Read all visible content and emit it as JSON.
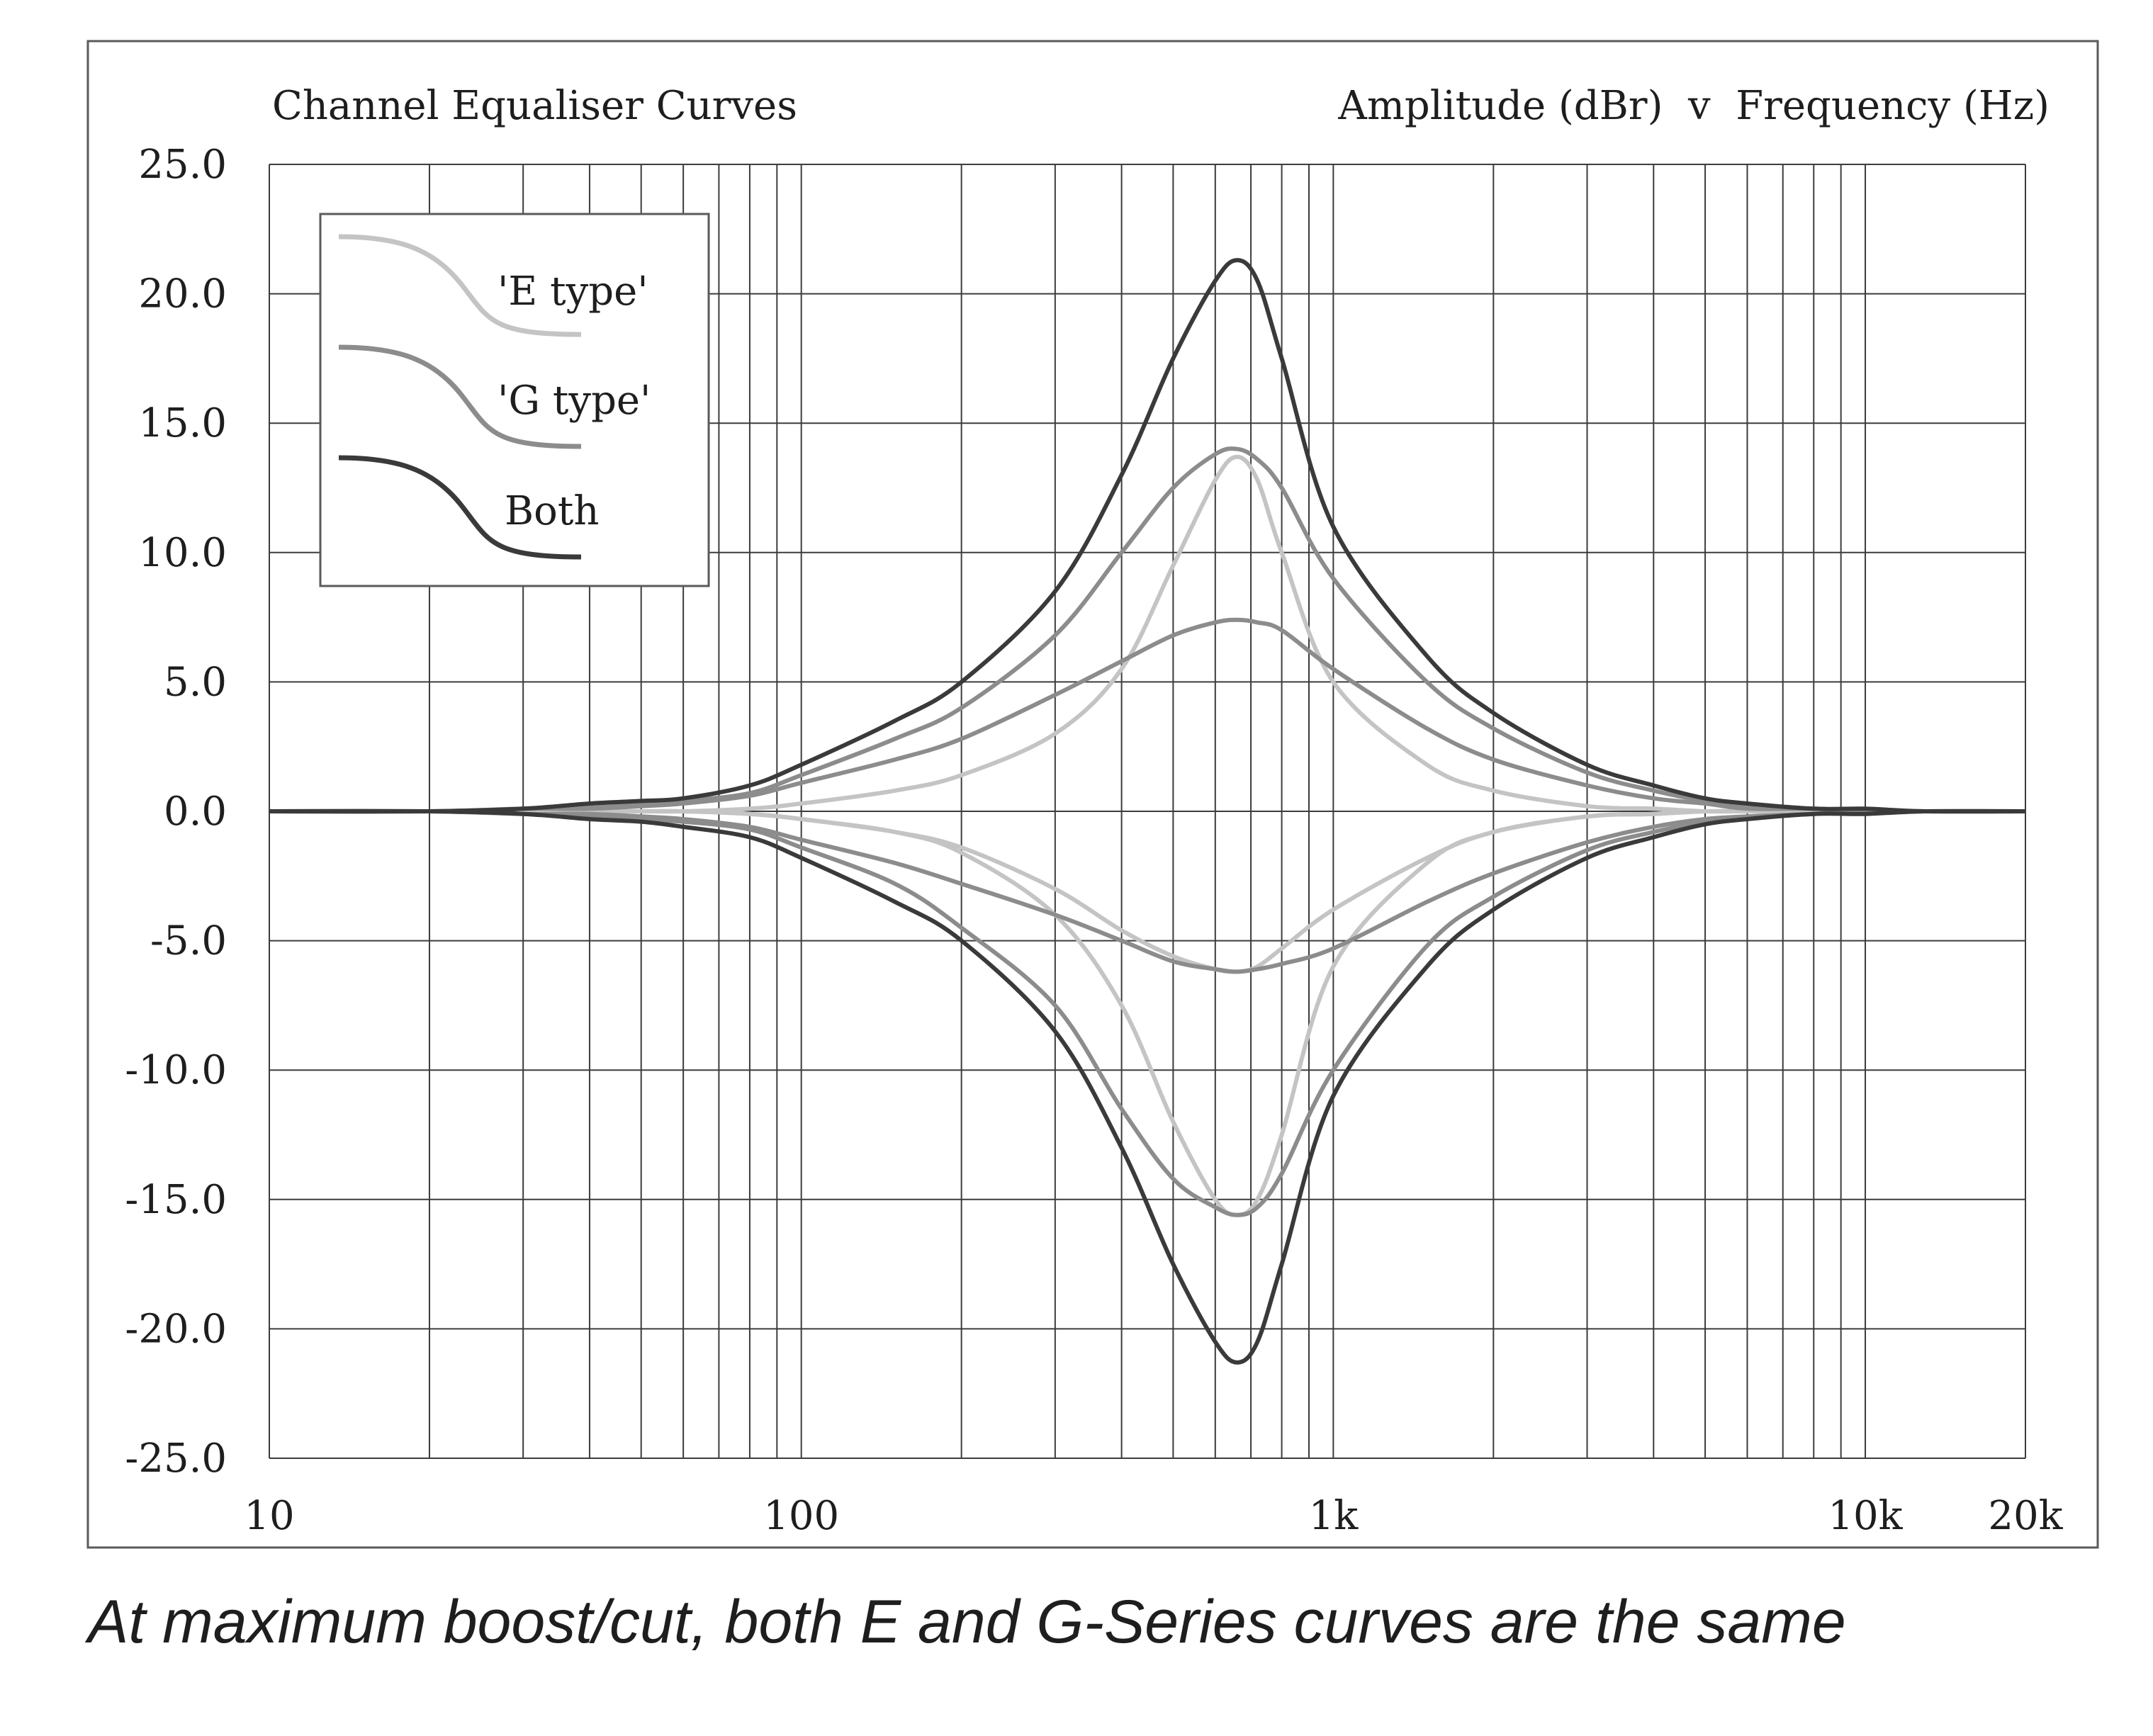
{
  "caption": "At maximum boost/cut, both E and G-Series curves are the same",
  "chart_data": {
    "type": "line",
    "title": "Channel Equaliser Curves",
    "subtitle": "Amplitude (dBr)  v  Frequency (Hz)",
    "x_scale": "log",
    "xlim": [
      10,
      20000
    ],
    "ylim": [
      -25,
      25
    ],
    "grid": true,
    "x_ticks": [
      {
        "value": 10,
        "label": "10"
      },
      {
        "value": 100,
        "label": "100"
      },
      {
        "value": 1000,
        "label": "1k"
      },
      {
        "value": 10000,
        "label": "10k"
      },
      {
        "value": 20000,
        "label": "20k"
      }
    ],
    "y_ticks": [
      {
        "value": 25,
        "label": "25.0"
      },
      {
        "value": 20,
        "label": "20.0"
      },
      {
        "value": 15,
        "label": "15.0"
      },
      {
        "value": 10,
        "label": "10.0"
      },
      {
        "value": 5,
        "label": "5.0"
      },
      {
        "value": 0,
        "label": "0.0"
      },
      {
        "value": -5,
        "label": "-5.0"
      },
      {
        "value": -10,
        "label": "-10.0"
      },
      {
        "value": -15,
        "label": "-15.0"
      },
      {
        "value": -20,
        "label": "-20.0"
      },
      {
        "value": -25,
        "label": "-25.0"
      }
    ],
    "legend": {
      "position": "top-left",
      "entries": [
        {
          "label": "'E type'",
          "color": "#c4c4c4"
        },
        {
          "label": "'G type'",
          "color": "#8c8c8c"
        },
        {
          "label": "Both",
          "color": "#3a3a3a"
        }
      ]
    },
    "x": [
      10,
      20,
      30,
      40,
      50,
      60,
      80,
      100,
      150,
      200,
      300,
      400,
      500,
      600,
      660,
      720,
      800,
      1000,
      1500,
      2000,
      3000,
      4000,
      5000,
      6000,
      8000,
      10000,
      13000,
      20000
    ],
    "series": [
      {
        "type": "Both",
        "color": "#3a3a3a",
        "values": [
          0,
          0,
          0.1,
          0.3,
          0.4,
          0.5,
          1.0,
          1.8,
          3.5,
          5.0,
          8.5,
          13.0,
          17.5,
          20.5,
          21.3,
          20.5,
          17.5,
          11.0,
          6.0,
          3.8,
          1.8,
          1.0,
          0.5,
          0.3,
          0.1,
          0.1,
          0,
          0
        ]
      },
      {
        "type": "Both",
        "color": "#3a3a3a",
        "values": [
          0,
          0,
          -0.1,
          -0.3,
          -0.4,
          -0.6,
          -1.0,
          -1.8,
          -3.5,
          -5.0,
          -8.5,
          -13.0,
          -17.5,
          -20.5,
          -21.3,
          -20.5,
          -17.5,
          -11.0,
          -6.0,
          -3.8,
          -1.8,
          -1.0,
          -0.5,
          -0.3,
          -0.1,
          -0.1,
          0,
          0
        ]
      },
      {
        "type": "G",
        "color": "#8c8c8c",
        "values": [
          0,
          0,
          0.1,
          0.2,
          0.3,
          0.4,
          0.7,
          1.4,
          2.8,
          4.0,
          6.8,
          10.0,
          12.5,
          13.8,
          14.0,
          13.6,
          12.5,
          9.0,
          5.0,
          3.2,
          1.5,
          0.8,
          0.4,
          0.2,
          0.1,
          0,
          0,
          0
        ]
      },
      {
        "type": "G",
        "color": "#8c8c8c",
        "values": [
          0,
          0,
          -0.1,
          -0.2,
          -0.3,
          -0.4,
          -0.7,
          -1.4,
          -2.8,
          -4.5,
          -7.5,
          -11.5,
          -14.2,
          -15.3,
          -15.6,
          -15.3,
          -14.0,
          -10.0,
          -5.2,
          -3.3,
          -1.5,
          -0.8,
          -0.4,
          -0.2,
          -0.1,
          0,
          0,
          0
        ]
      },
      {
        "type": "G",
        "color": "#8c8c8c",
        "values": [
          0,
          0,
          0.1,
          0.1,
          0.2,
          0.3,
          0.6,
          1.1,
          2.0,
          2.8,
          4.5,
          5.8,
          6.8,
          7.3,
          7.4,
          7.3,
          7.0,
          5.5,
          3.2,
          2.0,
          1.0,
          0.5,
          0.3,
          0.1,
          0.1,
          0,
          0,
          0
        ]
      },
      {
        "type": "G",
        "color": "#8c8c8c",
        "values": [
          0,
          0,
          -0.1,
          -0.1,
          -0.2,
          -0.3,
          -0.6,
          -1.1,
          -2.0,
          -2.8,
          -4.0,
          -5.0,
          -5.8,
          -6.1,
          -6.2,
          -6.1,
          -5.9,
          -5.3,
          -3.5,
          -2.4,
          -1.2,
          -0.6,
          -0.3,
          -0.2,
          -0.1,
          0,
          0,
          0
        ]
      },
      {
        "type": "E",
        "color": "#c4c4c4",
        "values": [
          0,
          0,
          0,
          0,
          0,
          0,
          0.1,
          0.3,
          0.8,
          1.4,
          3.0,
          5.5,
          9.5,
          12.8,
          13.7,
          12.8,
          10.0,
          5.0,
          1.8,
          0.8,
          0.2,
          0.1,
          0,
          0,
          0,
          0,
          0,
          0
        ]
      },
      {
        "type": "E",
        "color": "#c4c4c4",
        "values": [
          0,
          0,
          0,
          0,
          0,
          0,
          -0.1,
          -0.3,
          -0.8,
          -1.4,
          -3.0,
          -4.6,
          -5.6,
          -6.1,
          -6.2,
          -6.0,
          -5.3,
          -3.8,
          -1.8,
          -0.8,
          -0.2,
          -0.1,
          0,
          0,
          0,
          0,
          0,
          0
        ]
      },
      {
        "type": "E",
        "color": "#c4c4c4",
        "values": [
          0,
          0,
          0,
          0,
          0,
          0,
          -0.1,
          -0.3,
          -0.8,
          -1.6,
          -4.0,
          -7.5,
          -12.0,
          -15.0,
          -15.6,
          -15.0,
          -12.5,
          -6.0,
          -2.0,
          -0.8,
          -0.2,
          -0.1,
          0,
          0,
          0,
          0,
          0,
          0
        ]
      }
    ]
  }
}
